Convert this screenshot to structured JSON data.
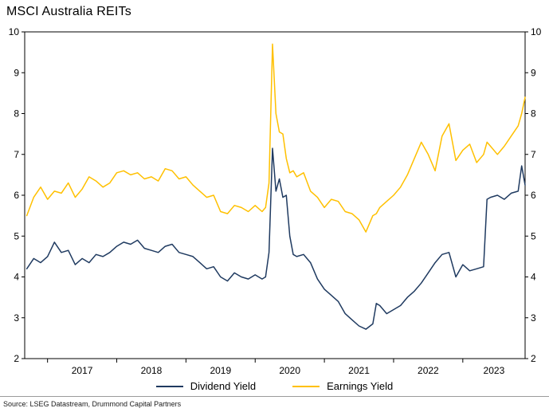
{
  "page": {
    "title": "MSCI Australia REITs",
    "source": "Source: LSEG Datastream, Drummond Capital Partners"
  },
  "colors": {
    "dividend": "#1f3a60",
    "earnings": "#ffc000",
    "axis": "#000000"
  },
  "chart_data": {
    "type": "line",
    "title": "MSCI Australia REITs",
    "xlabel": "",
    "ylabel": "",
    "x_range": [
      2016.67,
      2023.9
    ],
    "y_range": [
      2,
      10
    ],
    "y_ticks": [
      2,
      3,
      4,
      5,
      6,
      7,
      8,
      9,
      10
    ],
    "y_axis_sides": [
      "left",
      "right"
    ],
    "x_year_ticks": [
      2017,
      2018,
      2019,
      2020,
      2021,
      2022,
      2023
    ],
    "x_tick_labels": [
      "2017",
      "2018",
      "2019",
      "2020",
      "2021",
      "2022",
      "2023"
    ],
    "grid": false,
    "legend_position": "bottom",
    "x": [
      2016.7,
      2016.8,
      2016.9,
      2017.0,
      2017.1,
      2017.2,
      2017.3,
      2017.4,
      2017.5,
      2017.6,
      2017.7,
      2017.8,
      2017.9,
      2018.0,
      2018.1,
      2018.2,
      2018.3,
      2018.4,
      2018.5,
      2018.6,
      2018.7,
      2018.8,
      2018.9,
      2019.0,
      2019.1,
      2019.2,
      2019.3,
      2019.4,
      2019.5,
      2019.6,
      2019.7,
      2019.8,
      2019.9,
      2020.0,
      2020.1,
      2020.15,
      2020.2,
      2020.25,
      2020.3,
      2020.35,
      2020.4,
      2020.45,
      2020.5,
      2020.55,
      2020.6,
      2020.7,
      2020.8,
      2020.9,
      2021.0,
      2021.1,
      2021.2,
      2021.3,
      2021.4,
      2021.5,
      2021.6,
      2021.7,
      2021.75,
      2021.8,
      2021.9,
      2022.0,
      2022.1,
      2022.2,
      2022.3,
      2022.4,
      2022.5,
      2022.6,
      2022.7,
      2022.8,
      2022.9,
      2023.0,
      2023.1,
      2023.2,
      2023.3,
      2023.35,
      2023.4,
      2023.5,
      2023.6,
      2023.7,
      2023.8,
      2023.85,
      2023.9
    ],
    "series": [
      {
        "name": "Dividend Yield",
        "color": "#1f3a60",
        "values": [
          4.2,
          4.45,
          4.35,
          4.5,
          4.85,
          4.6,
          4.65,
          4.3,
          4.45,
          4.35,
          4.55,
          4.5,
          4.6,
          4.75,
          4.85,
          4.8,
          4.9,
          4.7,
          4.65,
          4.6,
          4.75,
          4.8,
          4.6,
          4.55,
          4.5,
          4.35,
          4.2,
          4.25,
          4.0,
          3.9,
          4.1,
          4.0,
          3.95,
          4.05,
          3.95,
          4.0,
          4.6,
          7.15,
          6.1,
          6.4,
          5.95,
          6.0,
          5.0,
          4.55,
          4.5,
          4.55,
          4.35,
          3.95,
          3.7,
          3.55,
          3.4,
          3.1,
          2.95,
          2.8,
          2.72,
          2.85,
          3.35,
          3.3,
          3.1,
          3.2,
          3.3,
          3.5,
          3.65,
          3.85,
          4.1,
          4.35,
          4.55,
          4.6,
          4.0,
          4.3,
          4.15,
          4.2,
          4.25,
          5.9,
          5.95,
          6.0,
          5.9,
          6.05,
          6.1,
          6.72,
          6.25
        ]
      },
      {
        "name": "Earnings Yield",
        "color": "#ffc000",
        "values": [
          5.5,
          5.95,
          6.2,
          5.9,
          6.1,
          6.05,
          6.3,
          5.95,
          6.15,
          6.45,
          6.35,
          6.2,
          6.3,
          6.55,
          6.6,
          6.5,
          6.55,
          6.4,
          6.45,
          6.35,
          6.65,
          6.6,
          6.4,
          6.45,
          6.25,
          6.1,
          5.95,
          6.0,
          5.6,
          5.55,
          5.75,
          5.7,
          5.6,
          5.75,
          5.6,
          5.7,
          6.3,
          9.7,
          8.0,
          7.55,
          7.5,
          6.9,
          6.55,
          6.6,
          6.45,
          6.55,
          6.1,
          5.95,
          5.7,
          5.9,
          5.85,
          5.6,
          5.55,
          5.4,
          5.1,
          5.5,
          5.55,
          5.7,
          5.85,
          6.0,
          6.2,
          6.5,
          6.9,
          7.3,
          7.0,
          6.6,
          7.45,
          7.75,
          6.85,
          7.1,
          7.25,
          6.8,
          7.0,
          7.3,
          7.2,
          7.0,
          7.2,
          7.45,
          7.7,
          8.0,
          8.4
        ]
      }
    ]
  }
}
